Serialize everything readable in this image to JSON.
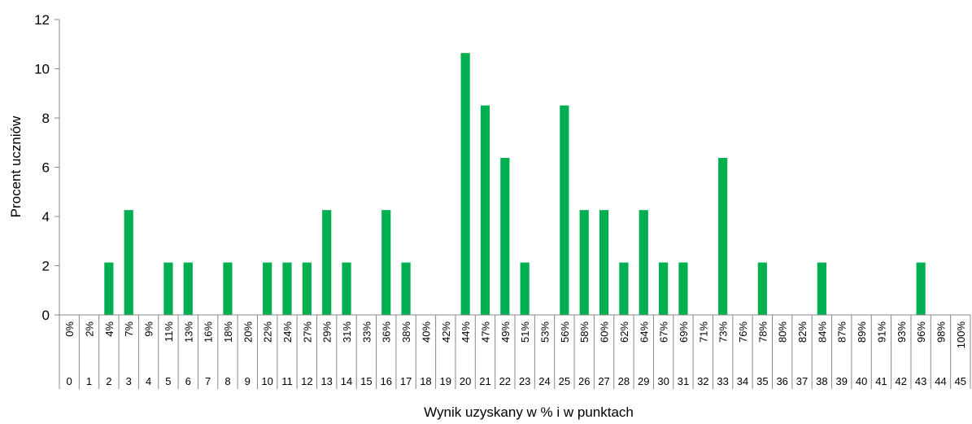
{
  "chart_data": {
    "type": "bar",
    "title": "",
    "xlabel": "Wynik uzyskany w % i w punktach",
    "ylabel": "Procent uczniów",
    "ylim": [
      0,
      12
    ],
    "yticks": [
      "0",
      "2",
      "4",
      "6",
      "8",
      "10",
      "12"
    ],
    "grid": false,
    "bar_color": "#00b050",
    "categories_percent": [
      "0%",
      "2%",
      "4%",
      "7%",
      "9%",
      "11%",
      "13%",
      "16%",
      "18%",
      "20%",
      "22%",
      "24%",
      "27%",
      "29%",
      "31%",
      "33%",
      "36%",
      "38%",
      "40%",
      "42%",
      "44%",
      "47%",
      "49%",
      "51%",
      "53%",
      "56%",
      "58%",
      "60%",
      "62%",
      "64%",
      "67%",
      "69%",
      "71%",
      "73%",
      "76%",
      "78%",
      "80%",
      "82%",
      "84%",
      "87%",
      "89%",
      "91%",
      "93%",
      "96%",
      "98%",
      "100%"
    ],
    "categories_points": [
      "0",
      "1",
      "2",
      "3",
      "4",
      "5",
      "6",
      "7",
      "8",
      "9",
      "10",
      "11",
      "12",
      "13",
      "14",
      "15",
      "16",
      "17",
      "18",
      "19",
      "20",
      "21",
      "22",
      "23",
      "24",
      "25",
      "26",
      "27",
      "28",
      "29",
      "30",
      "31",
      "32",
      "33",
      "34",
      "35",
      "36",
      "37",
      "38",
      "39",
      "40",
      "41",
      "42",
      "43",
      "44",
      "45"
    ],
    "values": [
      0,
      0,
      2.13,
      4.26,
      0,
      2.13,
      2.13,
      0,
      2.13,
      0,
      2.13,
      2.13,
      2.13,
      4.26,
      2.13,
      0,
      4.26,
      2.13,
      0,
      0,
      10.64,
      8.51,
      6.38,
      2.13,
      0,
      8.51,
      4.26,
      4.26,
      2.13,
      4.26,
      2.13,
      2.13,
      0,
      6.38,
      0,
      2.13,
      0,
      0,
      2.13,
      0,
      0,
      0,
      0,
      2.13,
      0,
      0
    ]
  }
}
